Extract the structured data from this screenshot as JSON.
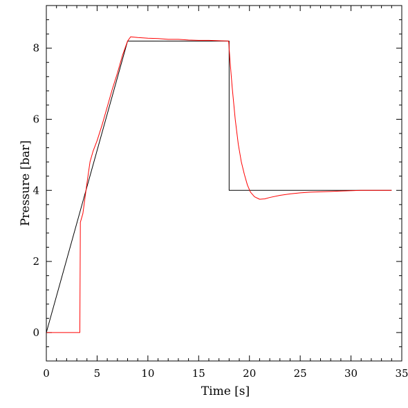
{
  "chart_data": {
    "type": "line",
    "title": "",
    "xlabel": "Time [s]",
    "ylabel": "Pressure [bar]",
    "xlim": [
      0,
      35
    ],
    "ylim": [
      -0.8,
      9.2
    ],
    "x_ticks": [
      0,
      5,
      10,
      15,
      20,
      25,
      30,
      35
    ],
    "x_tick_labels": [
      "0",
      "5",
      "10",
      "15",
      "20",
      "25",
      "30",
      "35"
    ],
    "y_ticks": [
      0,
      2,
      4,
      6,
      8
    ],
    "y_tick_labels": [
      "0",
      "2",
      "4",
      "6",
      "8"
    ],
    "x_minor_step": 1,
    "y_minor_step": 0.4,
    "grid": false,
    "legend": "none",
    "series": [
      {
        "color": "#000000",
        "x": [
          0,
          8,
          18,
          18,
          34
        ],
        "y": [
          0,
          8.2,
          8.2,
          4.0,
          4.0
        ]
      },
      {
        "color": "#ff0000",
        "x": [
          0,
          3.3,
          3.35,
          3.6,
          4.0,
          4.3,
          4.6,
          5.0,
          5.5,
          6.0,
          6.5,
          7.0,
          7.5,
          8.0,
          8.3,
          9,
          10,
          11,
          12,
          13,
          14,
          15,
          16,
          17,
          17.95,
          18.1,
          18.3,
          18.6,
          18.9,
          19.2,
          19.5,
          19.8,
          20.1,
          20.5,
          21.0,
          21.5,
          22.0,
          23.0,
          24.0,
          25.0,
          26.0,
          27.0,
          28.0,
          29.0,
          30.0,
          31.0,
          32.0,
          33.0,
          34.0
        ],
        "y": [
          0,
          0,
          3.1,
          3.35,
          4.2,
          4.8,
          5.1,
          5.4,
          5.85,
          6.35,
          6.85,
          7.3,
          7.8,
          8.2,
          8.32,
          8.3,
          8.28,
          8.27,
          8.25,
          8.25,
          8.23,
          8.22,
          8.22,
          8.21,
          8.2,
          7.6,
          6.9,
          6.0,
          5.3,
          4.8,
          4.45,
          4.15,
          3.95,
          3.82,
          3.75,
          3.76,
          3.8,
          3.86,
          3.9,
          3.93,
          3.95,
          3.96,
          3.97,
          3.98,
          3.99,
          4.0,
          4.0,
          4.0,
          4.0
        ]
      }
    ]
  }
}
